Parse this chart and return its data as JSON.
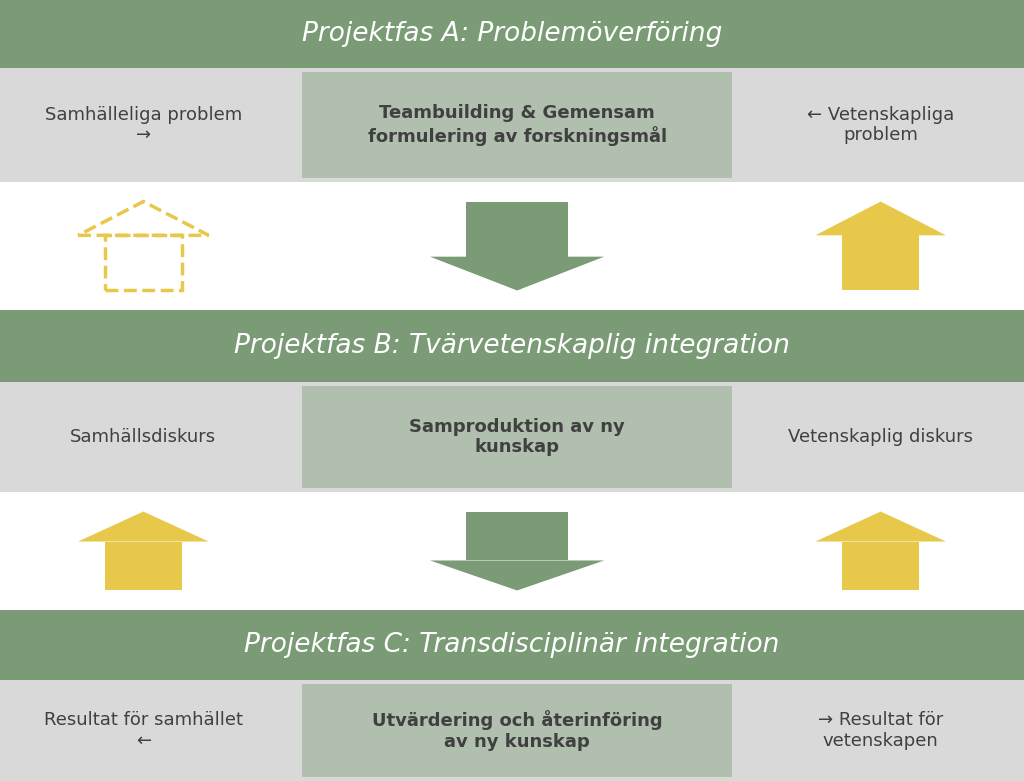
{
  "bg_color": "#ffffff",
  "green_band_color": "#7a9b76",
  "light_gray_row_color": "#d9d9d9",
  "white_row_color": "#ffffff",
  "center_box_color": "#b0bfae",
  "arrow_green_color": "#7a9b76",
  "arrow_yellow_color": "#e8c84a",
  "arrow_yellow_outline": "#e8a800",
  "arrow_yellow_dashed_color": "#e8c84a",
  "text_white": "#ffffff",
  "text_dark": "#404040",
  "text_bold_dark": "#1a1a1a",
  "phase_A_title": "Projektfas A: Problemöverföring",
  "phase_B_title": "Projektfas B: Tvärvetenskaplig integration",
  "phase_C_title": "Projektfas C: Transdisciplinär integration",
  "row1_left": "Samhälleliga problem\n→",
  "row1_center": "Teambuilding & Gemensam\nformulering av forskningsmål",
  "row1_right": "← Vetenskapliga\nproblem",
  "row3_left": "Samhällsdiskurs",
  "row3_center": "Samproduktion av ny\nkunskap",
  "row3_right": "Vetenskaplig diskurs",
  "row5_left": "Resultat för samhället\n←",
  "row5_center": "Utvärdering och återinföring\nav ny kunskap",
  "row5_right": "→ Resultat för\nvetenskapen",
  "fig_width": 10.24,
  "fig_height": 7.81
}
